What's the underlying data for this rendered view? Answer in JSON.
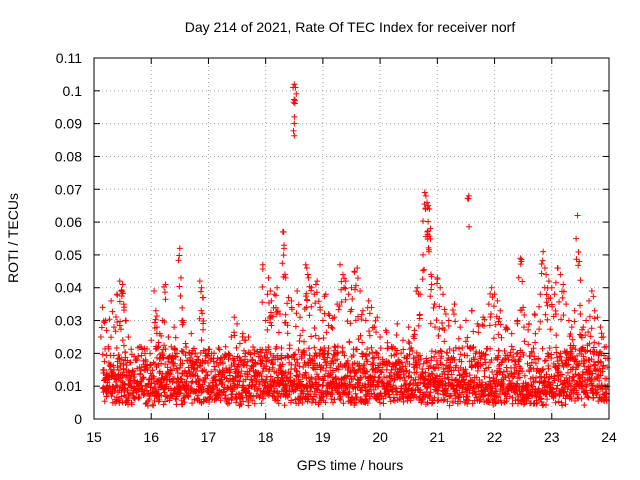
{
  "chart_data": {
    "type": "scatter",
    "title": "Day 214 of 2021, Rate Of TEC Index for receiver norf",
    "xlabel": "GPS time / hours",
    "ylabel": "ROTI / TECUs",
    "xlim": [
      15,
      24
    ],
    "ylim": [
      0,
      0.11
    ],
    "xticks": [
      15,
      16,
      17,
      18,
      19,
      20,
      21,
      22,
      23,
      24
    ],
    "xtick_labels": [
      "15",
      "16",
      "17",
      "18",
      "19",
      "20",
      "21",
      "22",
      "23",
      "24"
    ],
    "yticks": [
      0,
      0.01,
      0.02,
      0.03,
      0.04,
      0.05,
      0.06,
      0.07,
      0.08,
      0.09,
      0.1,
      0.11
    ],
    "ytick_labels": [
      "0",
      "0.01",
      "0.02",
      "0.03",
      "0.04",
      "0.05",
      "0.06",
      "0.07",
      "0.08",
      "0.09",
      "0.1",
      "0.11"
    ],
    "grid": true,
    "marker": "plus",
    "color": "#ff0000",
    "series": [
      {
        "name": "ROTI",
        "points": [
          [
            15.15,
            0.034
          ],
          [
            15.2,
            0.03
          ],
          [
            15.22,
            0.027
          ],
          [
            15.25,
            0.022
          ],
          [
            15.3,
            0.036
          ],
          [
            15.35,
            0.028
          ],
          [
            15.4,
            0.038
          ],
          [
            15.45,
            0.042
          ],
          [
            15.48,
            0.039
          ],
          [
            15.5,
            0.041
          ],
          [
            15.52,
            0.035
          ],
          [
            15.55,
            0.03
          ],
          [
            15.6,
            0.025
          ],
          [
            15.7,
            0.019
          ],
          [
            15.8,
            0.022
          ],
          [
            15.9,
            0.018
          ],
          [
            16.0,
            0.024
          ],
          [
            16.05,
            0.039
          ],
          [
            16.08,
            0.033
          ],
          [
            16.1,
            0.028
          ],
          [
            16.15,
            0.026
          ],
          [
            16.2,
            0.03
          ],
          [
            16.25,
            0.041
          ],
          [
            16.3,
            0.025
          ],
          [
            16.35,
            0.022
          ],
          [
            16.4,
            0.028
          ],
          [
            16.45,
            0.02
          ],
          [
            16.5,
            0.052
          ],
          [
            16.52,
            0.043
          ],
          [
            16.55,
            0.03
          ],
          [
            16.6,
            0.023
          ],
          [
            16.7,
            0.026
          ],
          [
            16.8,
            0.019
          ],
          [
            16.85,
            0.042
          ],
          [
            16.88,
            0.04
          ],
          [
            16.9,
            0.037
          ],
          [
            17.0,
            0.02
          ],
          [
            17.1,
            0.016
          ],
          [
            17.2,
            0.018
          ],
          [
            17.3,
            0.022
          ],
          [
            17.4,
            0.025
          ],
          [
            17.45,
            0.031
          ],
          [
            17.5,
            0.029
          ],
          [
            17.55,
            0.023
          ],
          [
            17.6,
            0.026
          ],
          [
            17.65,
            0.024
          ],
          [
            17.7,
            0.025
          ],
          [
            17.8,
            0.021
          ],
          [
            17.9,
            0.019
          ],
          [
            17.95,
            0.047
          ],
          [
            18.0,
            0.03
          ],
          [
            18.05,
            0.043
          ],
          [
            18.08,
            0.039
          ],
          [
            18.1,
            0.036
          ],
          [
            18.15,
            0.038
          ],
          [
            18.2,
            0.04
          ],
          [
            18.25,
            0.032
          ],
          [
            18.3,
            0.057
          ],
          [
            18.32,
            0.052
          ],
          [
            18.35,
            0.043
          ],
          [
            18.4,
            0.037
          ],
          [
            18.45,
            0.036
          ],
          [
            18.48,
            0.101
          ],
          [
            18.5,
            0.102
          ],
          [
            18.52,
            0.101
          ],
          [
            18.55,
            0.039
          ],
          [
            18.6,
            0.031
          ],
          [
            18.65,
            0.027
          ],
          [
            18.7,
            0.047
          ],
          [
            18.72,
            0.046
          ],
          [
            18.75,
            0.043
          ],
          [
            18.8,
            0.04
          ],
          [
            18.85,
            0.038
          ],
          [
            18.9,
            0.042
          ],
          [
            18.95,
            0.034
          ],
          [
            19.0,
            0.03
          ],
          [
            19.05,
            0.038
          ],
          [
            19.1,
            0.032
          ],
          [
            19.15,
            0.028
          ],
          [
            19.2,
            0.031
          ],
          [
            19.25,
            0.035
          ],
          [
            19.3,
            0.047
          ],
          [
            19.35,
            0.044
          ],
          [
            19.4,
            0.042
          ],
          [
            19.45,
            0.038
          ],
          [
            19.5,
            0.04
          ],
          [
            19.55,
            0.045
          ],
          [
            19.6,
            0.046
          ],
          [
            19.65,
            0.039
          ],
          [
            19.7,
            0.033
          ],
          [
            19.75,
            0.03
          ],
          [
            19.8,
            0.036
          ],
          [
            19.85,
            0.034
          ],
          [
            19.9,
            0.028
          ],
          [
            19.95,
            0.031
          ],
          [
            20.0,
            0.025
          ],
          [
            20.1,
            0.027
          ],
          [
            20.2,
            0.022
          ],
          [
            20.3,
            0.029
          ],
          [
            20.4,
            0.024
          ],
          [
            20.5,
            0.028
          ],
          [
            20.6,
            0.027
          ],
          [
            20.65,
            0.04
          ],
          [
            20.7,
            0.038
          ],
          [
            20.75,
            0.05
          ],
          [
            20.78,
            0.069
          ],
          [
            20.8,
            0.068
          ],
          [
            20.82,
            0.066
          ],
          [
            20.84,
            0.065
          ],
          [
            20.86,
            0.064
          ],
          [
            20.88,
            0.058
          ],
          [
            20.9,
            0.041
          ],
          [
            20.95,
            0.035
          ],
          [
            21.0,
            0.043
          ],
          [
            21.05,
            0.04
          ],
          [
            21.1,
            0.038
          ],
          [
            21.15,
            0.032
          ],
          [
            21.2,
            0.03
          ],
          [
            21.3,
            0.035
          ],
          [
            21.4,
            0.028
          ],
          [
            21.5,
            0.03
          ],
          [
            21.55,
            0.068
          ],
          [
            21.6,
            0.033
          ],
          [
            21.7,
            0.029
          ],
          [
            21.8,
            0.031
          ],
          [
            21.9,
            0.035
          ],
          [
            21.95,
            0.04
          ],
          [
            22.0,
            0.038
          ],
          [
            22.05,
            0.036
          ],
          [
            22.1,
            0.033
          ],
          [
            22.2,
            0.028
          ],
          [
            22.3,
            0.026
          ],
          [
            22.4,
            0.03
          ],
          [
            22.45,
            0.049
          ],
          [
            22.47,
            0.048
          ],
          [
            22.5,
            0.034
          ],
          [
            22.6,
            0.029
          ],
          [
            22.7,
            0.032
          ],
          [
            22.8,
            0.038
          ],
          [
            22.85,
            0.051
          ],
          [
            22.88,
            0.046
          ],
          [
            22.9,
            0.044
          ],
          [
            22.95,
            0.042
          ],
          [
            23.0,
            0.04
          ],
          [
            23.05,
            0.038
          ],
          [
            23.1,
            0.046
          ],
          [
            23.15,
            0.044
          ],
          [
            23.2,
            0.041
          ],
          [
            23.25,
            0.035
          ],
          [
            23.3,
            0.03
          ],
          [
            23.35,
            0.028
          ],
          [
            23.4,
            0.033
          ],
          [
            23.45,
            0.062
          ],
          [
            23.48,
            0.048
          ],
          [
            23.5,
            0.032
          ],
          [
            23.55,
            0.028
          ],
          [
            23.6,
            0.03
          ],
          [
            23.65,
            0.036
          ],
          [
            23.7,
            0.039
          ],
          [
            23.75,
            0.033
          ],
          [
            23.8,
            0.031
          ],
          [
            23.85,
            0.028
          ],
          [
            23.9,
            0.025
          ],
          [
            23.95,
            0.022
          ]
        ],
        "baseline_band": {
          "x_range": [
            15.15,
            23.98
          ],
          "y_range": [
            0.004,
            0.022
          ],
          "note": "dense cloud of measurements"
        }
      }
    ]
  }
}
